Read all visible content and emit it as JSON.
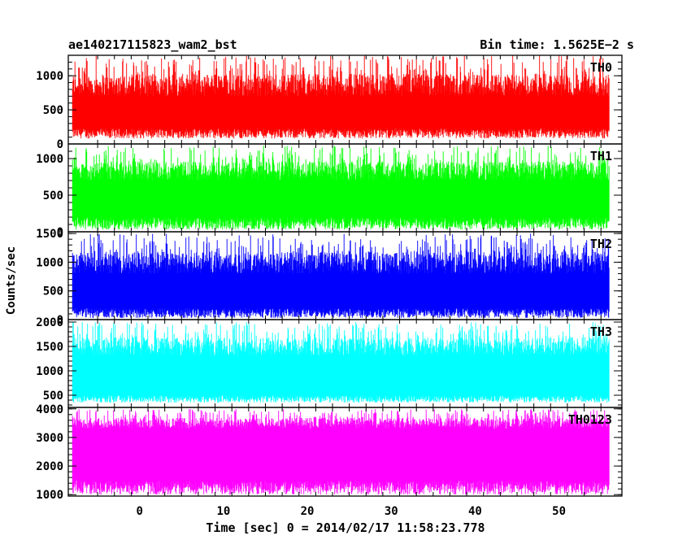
{
  "chart_data": {
    "type": "line",
    "title": "ae140217115823_wam2_bst",
    "subtitle": "Bin time: 1.5625E−2 s",
    "xlabel": "Time [sec] 0 = 2014/02/17 11:58:23.778",
    "ylabel": "Counts/sec",
    "xlim": [
      -8.5,
      57.5
    ],
    "x_ticks": [
      "0",
      "10",
      "20",
      "30",
      "40",
      "50"
    ],
    "x_range_data": [
      -8,
      56
    ],
    "grid": false,
    "series": [
      {
        "name": "TH0",
        "color": "#ff0000",
        "ylim": [
          0,
          1300
        ],
        "y_ticks": [
          0,
          500,
          1000
        ],
        "mean": 520,
        "low_band": [
          80,
          230
        ],
        "high_band": [
          700,
          1300
        ]
      },
      {
        "name": "TH1",
        "color": "#00ff00",
        "ylim": [
          0,
          1200
        ],
        "y_ticks": [
          0,
          500,
          1000
        ],
        "mean": 520,
        "low_band": [
          30,
          200
        ],
        "high_band": [
          700,
          1180
        ]
      },
      {
        "name": "TH2",
        "color": "#0000ff",
        "ylim": [
          0,
          1530
        ],
        "y_ticks": [
          0,
          500,
          1000,
          1500
        ],
        "mean": 560,
        "low_band": [
          30,
          200
        ],
        "high_band": [
          800,
          1500
        ]
      },
      {
        "name": "TH3",
        "color": "#00ffff",
        "ylim": [
          250,
          2050
        ],
        "y_ticks": [
          500,
          1000,
          1500,
          2000
        ],
        "mean": 980,
        "low_band": [
          350,
          500
        ],
        "high_band": [
          1300,
          2000
        ]
      },
      {
        "name": "TH0123",
        "color": "#ff00ff",
        "ylim": [
          950,
          4050
        ],
        "y_ticks": [
          1000,
          2000,
          3000,
          4000
        ],
        "mean": 2450,
        "low_band": [
          1000,
          1500
        ],
        "high_band": [
          3300,
          4000
        ]
      }
    ]
  }
}
